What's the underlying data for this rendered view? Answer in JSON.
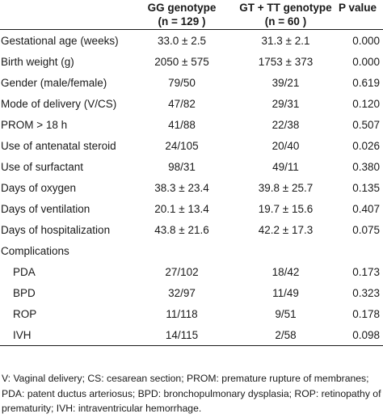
{
  "table": {
    "headers": {
      "col_label": "",
      "gg_line1": "GG genotype",
      "gg_line2": "(n = 129 )",
      "gt_line1": "GT + TT genotype",
      "gt_line2": "(n = 60 )",
      "pvalue": "P value"
    },
    "rows": [
      {
        "label": "Gestational age (weeks)",
        "gg": "33.0 ± 2.5",
        "gt": "31.3 ± 2.1",
        "p": "0.000"
      },
      {
        "label": "Birth weight (g)",
        "gg": "2050 ± 575",
        "gt": "1753 ± 373",
        "p": "0.000"
      },
      {
        "label": "Gender (male/female)",
        "gg": "79/50",
        "gt": "39/21",
        "p": "0.619"
      },
      {
        "label": "Mode of delivery (V/CS)",
        "gg": "47/82",
        "gt": "29/31",
        "p": "0.120"
      },
      {
        "label": "PROM > 18 h",
        "gg": "41/88",
        "gt": "22/38",
        "p": "0.507"
      },
      {
        "label": "Use of antenatal steroid",
        "gg": "24/105",
        "gt": "20/40",
        "p": "0.026"
      },
      {
        "label": "Use of surfactant",
        "gg": "98/31",
        "gt": "49/11",
        "p": "0.380"
      },
      {
        "label": "Days of oxygen",
        "gg": "38.3 ± 23.4",
        "gt": "39.8 ± 25.7",
        "p": "0.135"
      },
      {
        "label": "Days of ventilation",
        "gg": "20.1 ± 13.4",
        "gt": "19.7 ± 15.6",
        "p": "0.407"
      },
      {
        "label": "Days of hospitalization",
        "gg": "43.8 ± 21.6",
        "gt": "42.2 ± 17.3",
        "p": "0.075"
      },
      {
        "label": "Complications",
        "gg": "",
        "gt": "",
        "p": ""
      },
      {
        "label": "PDA",
        "gg": "27/102",
        "gt": "18/42",
        "p": "0.173"
      },
      {
        "label": "BPD",
        "gg": "32/97",
        "gt": "11/49",
        "p": "0.323"
      },
      {
        "label": "ROP",
        "gg": "11/118",
        "gt": "9/51",
        "p": "0.178"
      },
      {
        "label": "IVH",
        "gg": "14/115",
        "gt": "2/58",
        "p": "0.098"
      }
    ]
  },
  "footnote": "V: Vaginal delivery; CS: cesarean section; PROM: premature rupture of membranes; PDA: patent ductus arteriosus; BPD: bronchopulmonary dysplasia; ROP: retinopathy of prematurity; IVH: intraventricular hemorrhage."
}
